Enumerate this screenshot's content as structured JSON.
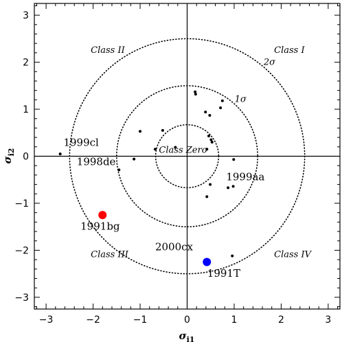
{
  "chart_data": {
    "type": "scatter",
    "title": "",
    "xlabel": "σ",
    "xlabel_sub": "i1",
    "ylabel": "σ",
    "ylabel_sub": "i2",
    "xlim": [
      -3.25,
      3.25
    ],
    "ylim": [
      -3.25,
      3.25
    ],
    "xticks": [
      "−3",
      "−2",
      "−1",
      "0",
      "1",
      "2",
      "3"
    ],
    "yticks": [
      "−3",
      "−2",
      "−1",
      "0",
      "1",
      "2",
      "3"
    ],
    "xtick_values": [
      -3,
      -2,
      -1,
      0,
      1,
      2,
      3
    ],
    "ytick_values": [
      -3,
      -2,
      -1,
      0,
      1,
      2,
      3
    ],
    "grid": false,
    "circles": [
      {
        "radius": 0.67,
        "label": ""
      },
      {
        "radius": 1.5,
        "label": "1σ"
      },
      {
        "radius": 2.5,
        "label": "2σ"
      }
    ],
    "class_labels": [
      {
        "text": "Class I",
        "x": 1.85,
        "y": 2.2
      },
      {
        "text": "Class II",
        "x": -2.05,
        "y": 2.2
      },
      {
        "text": "Class III",
        "x": -2.05,
        "y": -2.15
      },
      {
        "text": "Class IV",
        "x": 1.85,
        "y": -2.15
      },
      {
        "text": "Class Zero",
        "x": -0.6,
        "y": 0.07
      }
    ],
    "points": [
      {
        "x": 0.17,
        "y": 1.37
      },
      {
        "x": 0.18,
        "y": 1.32
      },
      {
        "x": 0.75,
        "y": 1.18
      },
      {
        "x": 0.71,
        "y": 1.03
      },
      {
        "x": 0.39,
        "y": 0.94
      },
      {
        "x": 0.48,
        "y": 0.87
      },
      {
        "x": -1.0,
        "y": 0.53
      },
      {
        "x": -0.52,
        "y": 0.55
      },
      {
        "x": 0.46,
        "y": 0.43
      },
      {
        "x": 0.51,
        "y": 0.35
      },
      {
        "x": 0.53,
        "y": 0.3
      },
      {
        "x": -0.68,
        "y": 0.15
      },
      {
        "x": -0.25,
        "y": 0.19
      },
      {
        "x": 0.42,
        "y": 0.15
      },
      {
        "x": -1.13,
        "y": -0.06
      },
      {
        "x": 0.99,
        "y": -0.07
      },
      {
        "x": 0.49,
        "y": -0.6
      },
      {
        "x": 0.87,
        "y": -0.67
      },
      {
        "x": 0.98,
        "y": -0.64
      },
      {
        "x": 0.42,
        "y": -0.86
      },
      {
        "x": -2.7,
        "y": 0.05
      },
      {
        "x": -1.45,
        "y": -0.29
      },
      {
        "x": 0.96,
        "y": -2.12
      }
    ],
    "named_points": [
      {
        "name": "1999cl",
        "x": -2.7,
        "y": 0.05,
        "label_dx": 0.07,
        "label_dy": 0.17,
        "anchor": "start"
      },
      {
        "name": "1998de",
        "x": -1.45,
        "y": -0.29,
        "label_dx": -0.07,
        "label_dy": 0.1,
        "anchor": "end"
      },
      {
        "name": "1999aa",
        "x": 0.98,
        "y": -0.64,
        "label_dx": -0.15,
        "label_dy": 0.13,
        "anchor": "start"
      },
      {
        "name": "2000cx",
        "x": 0.96,
        "y": -2.12,
        "label_dx": -1.64,
        "label_dy": 0.12,
        "anchor": "start"
      }
    ],
    "highlight_points": [
      {
        "name": "1991bg",
        "x": -1.8,
        "y": -1.25,
        "color": "#ff0000",
        "label_dx": -0.05,
        "label_dy": -0.31,
        "anchor": "middle"
      },
      {
        "name": "1991T",
        "x": 0.42,
        "y": -2.25,
        "color": "#0000ff",
        "label_dx": 0.36,
        "label_dy": -0.31,
        "anchor": "middle"
      }
    ]
  }
}
